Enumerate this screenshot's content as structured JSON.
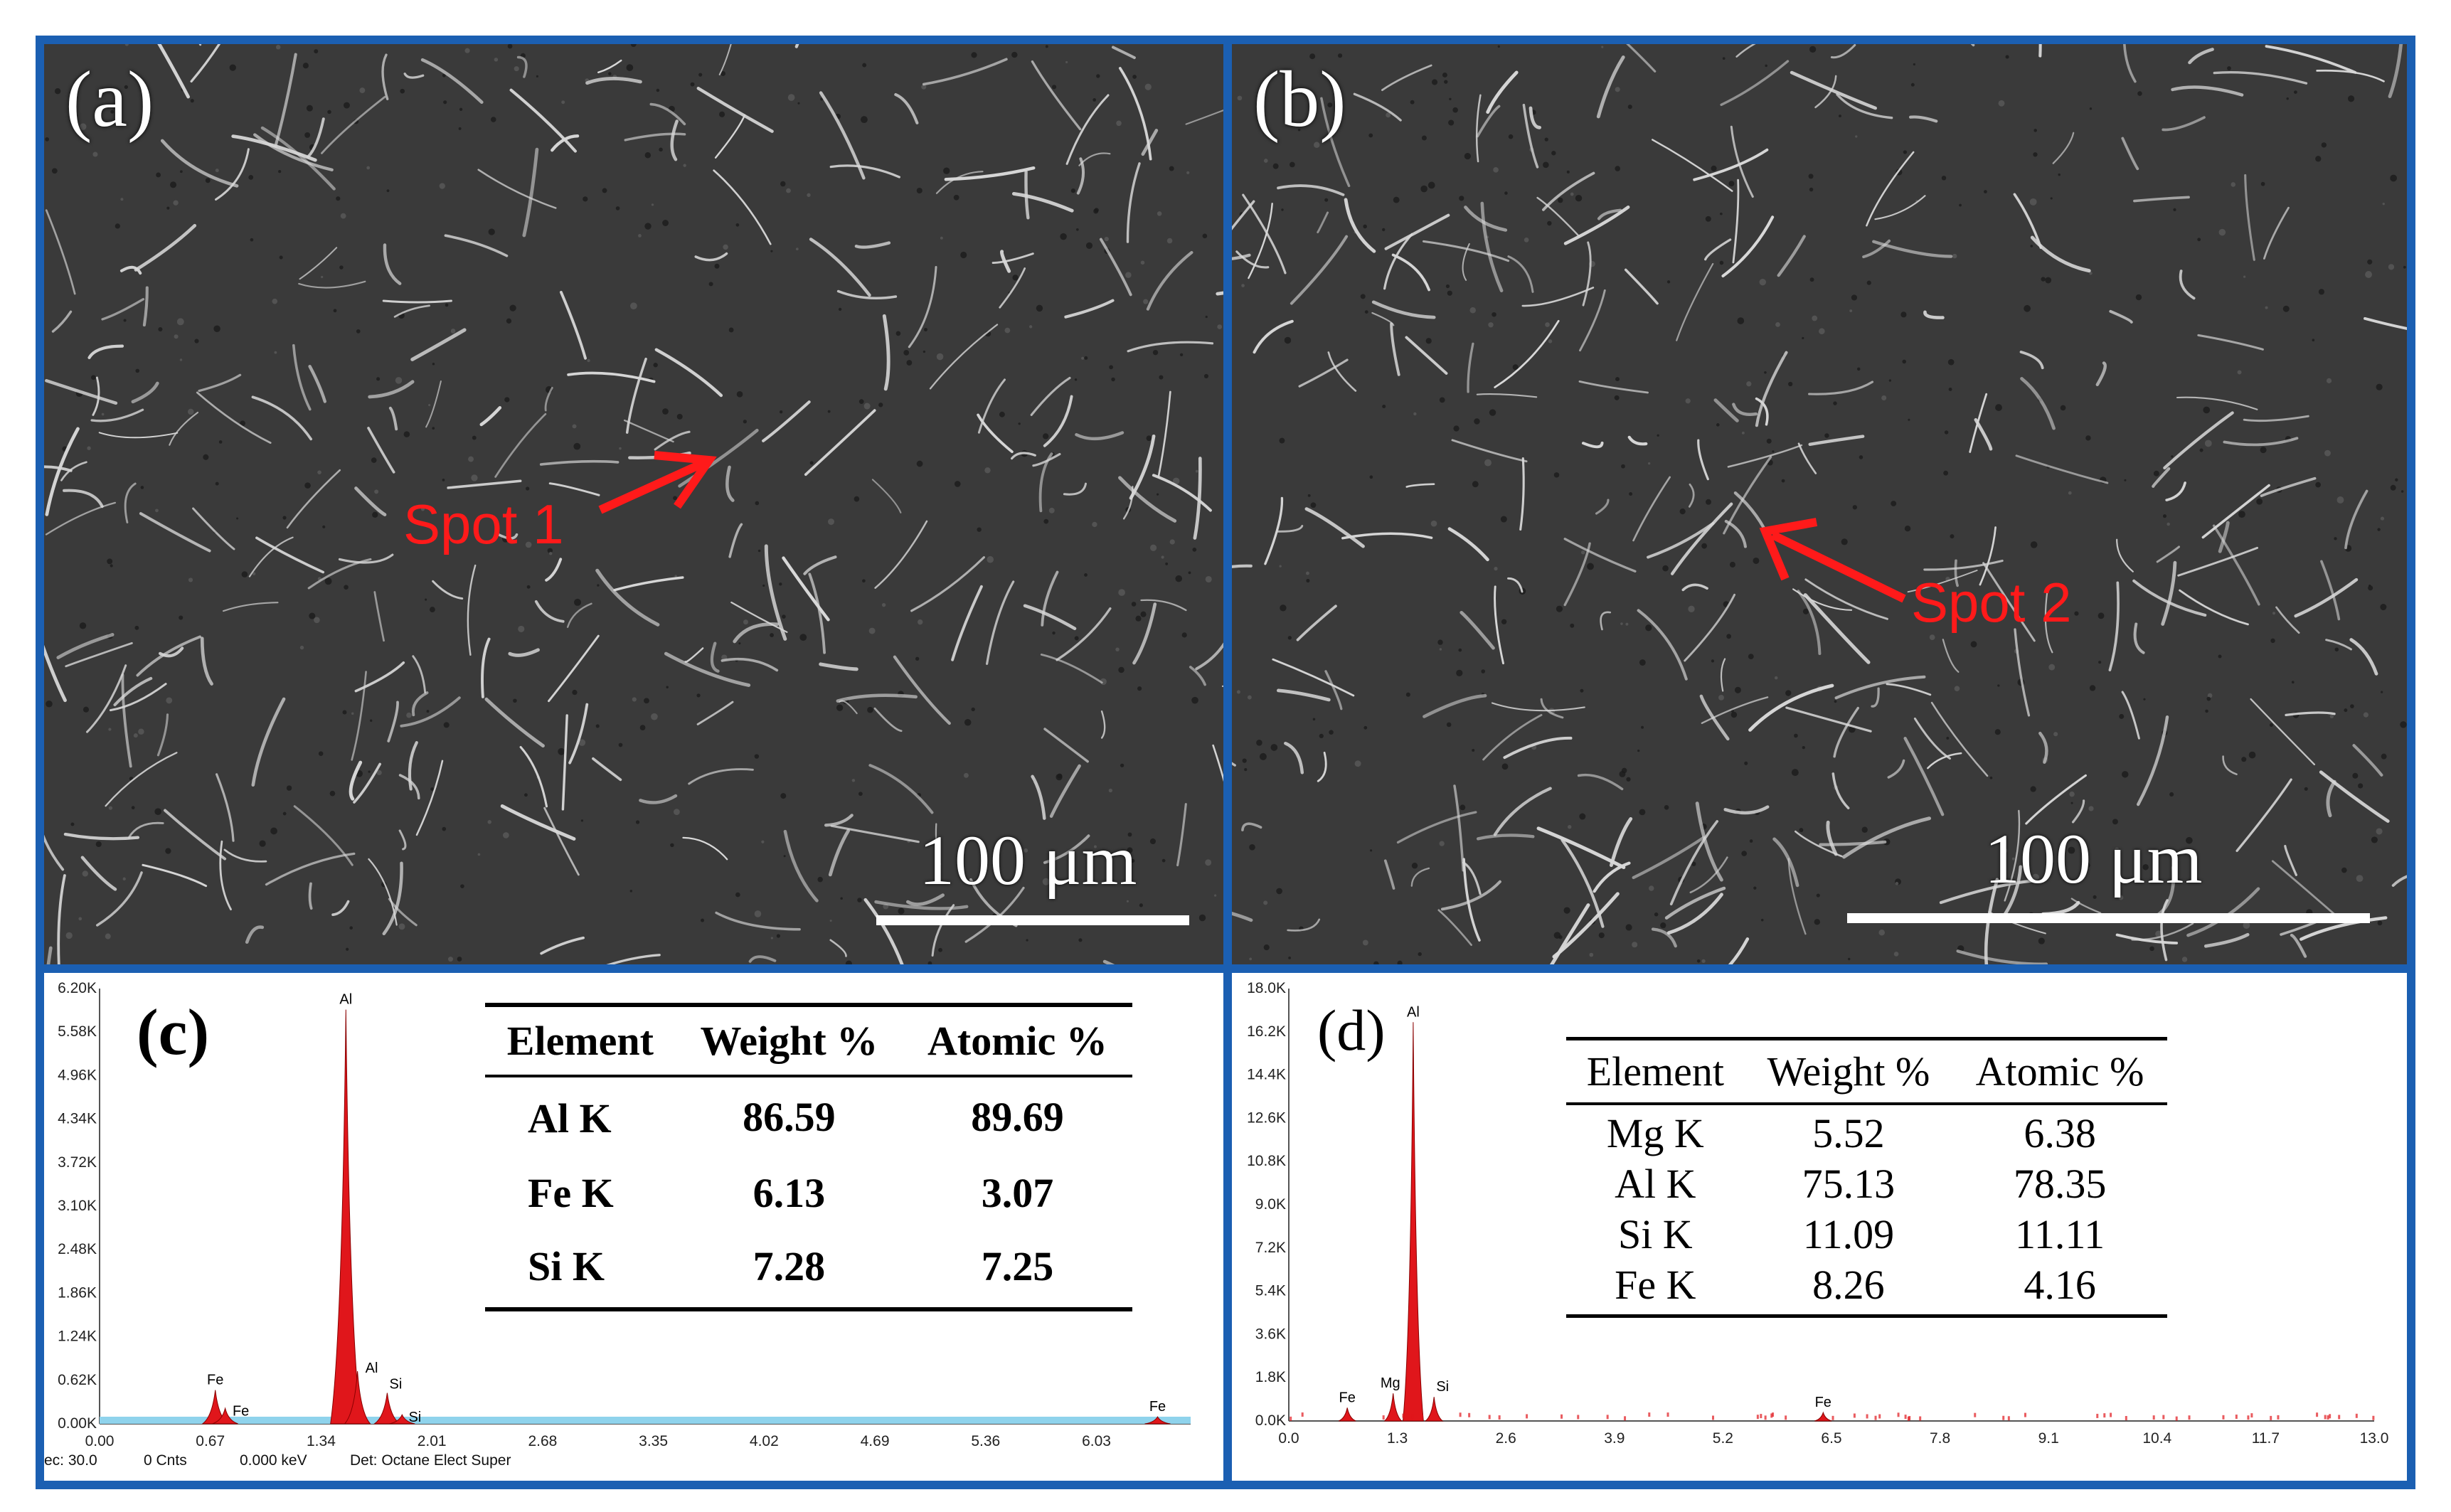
{
  "panel_a": {
    "label": "(a)",
    "scale": "100 μm",
    "spot": "Spot 1"
  },
  "panel_b": {
    "label": "(b)",
    "scale": "100 μm",
    "spot": "Spot 2"
  },
  "panel_c": {
    "label": "(c)",
    "headers": [
      "Element",
      "Weight %",
      "Atomic %"
    ],
    "rows": [
      [
        "Al K",
        "86.59",
        "89.69"
      ],
      [
        "Fe K",
        "6.13",
        "3.07"
      ],
      [
        "Si K",
        "7.28",
        "7.25"
      ]
    ],
    "status": {
      "live": "ec: 30.0",
      "cnts": "0 Cnts",
      "kev": "0.000 keV",
      "det": "Det: Octane Elect Super"
    }
  },
  "panel_d": {
    "label": "(d)",
    "headers": [
      "Element",
      "Weight %",
      "Atomic %"
    ],
    "rows": [
      [
        "Mg K",
        "5.52",
        "6.38"
      ],
      [
        "Al K",
        "75.13",
        "78.35"
      ],
      [
        "Si K",
        "11.09",
        "11.11"
      ],
      [
        "Fe K",
        "8.26",
        "4.16"
      ]
    ]
  },
  "chart_data": [
    {
      "type": "area",
      "panel": "c",
      "x_ticks": [
        "0.00",
        "0.67",
        "1.34",
        "2.01",
        "2.68",
        "3.35",
        "4.02",
        "4.69",
        "5.36",
        "6.03"
      ],
      "y_ticks": [
        "0.00K",
        "0.62K",
        "1.24K",
        "1.86K",
        "2.48K",
        "3.10K",
        "3.72K",
        "4.34K",
        "4.96K",
        "5.58K",
        "6.20K"
      ],
      "xlim": [
        0,
        6.6
      ],
      "ylim": [
        0,
        6.2
      ],
      "peaks": [
        {
          "label": "Fe",
          "x": 0.7,
          "y": 0.48
        },
        {
          "label": "Fe",
          "x": 0.76,
          "y": 0.22
        },
        {
          "label": "Al",
          "x": 1.49,
          "y": 5.9
        },
        {
          "label": "Al",
          "x": 1.56,
          "y": 0.75
        },
        {
          "label": "Si",
          "x": 1.74,
          "y": 0.44
        },
        {
          "label": "Si",
          "x": 1.83,
          "y": 0.13
        },
        {
          "label": "Fe",
          "x": 6.4,
          "y": 0.1
        }
      ],
      "color": "#e0161b"
    },
    {
      "type": "area",
      "panel": "d",
      "x_ticks": [
        "0.0",
        "1.3",
        "2.6",
        "3.9",
        "5.2",
        "6.5",
        "7.8",
        "9.1",
        "10.4",
        "11.7",
        "13.0"
      ],
      "y_ticks": [
        "0.0K",
        "1.8K",
        "3.6K",
        "5.4K",
        "7.2K",
        "9.0K",
        "10.8K",
        "12.6K",
        "14.4K",
        "16.2K",
        "18.0K"
      ],
      "xlim": [
        0,
        13.0
      ],
      "ylim": [
        0,
        18.0
      ],
      "peaks": [
        {
          "label": "Fe",
          "x": 0.7,
          "y": 0.55
        },
        {
          "label": "Mg",
          "x": 1.25,
          "y": 1.15
        },
        {
          "label": "Al",
          "x": 1.49,
          "y": 16.6
        },
        {
          "label": "Si",
          "x": 1.74,
          "y": 1.0
        },
        {
          "label": "Fe",
          "x": 6.4,
          "y": 0.35
        }
      ],
      "color": "#e0161b"
    }
  ]
}
